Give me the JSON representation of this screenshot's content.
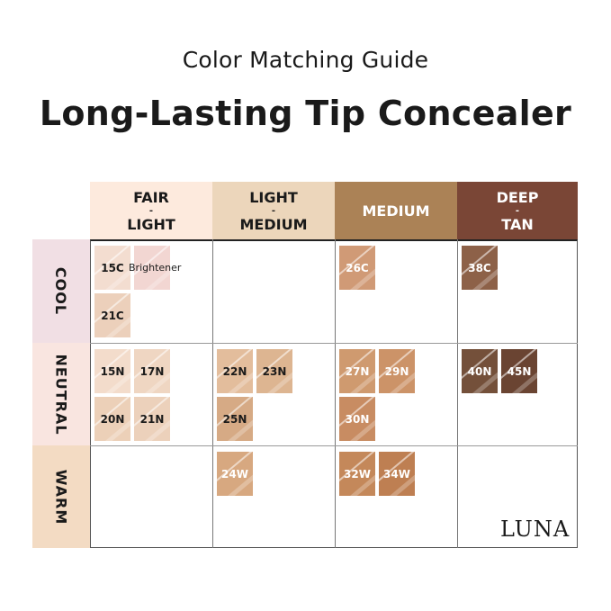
{
  "subtitle": "Color Matching Guide",
  "title": "Long-Lasting Tip Concealer",
  "columns": [
    {
      "top": "FAIR",
      "dash": "-",
      "bottom": "LIGHT",
      "color": "#fdeadd",
      "text": "#1a1a1a"
    },
    {
      "top": "LIGHT",
      "dash": "-",
      "bottom": "MEDIUM",
      "color": "#ecd6bb",
      "text": "#1a1a1a"
    },
    {
      "top": "MEDIUM",
      "dash": "",
      "bottom": "",
      "color": "#ab8256",
      "text": "#ffffff"
    },
    {
      "top": "DEEP",
      "dash": "-",
      "bottom": "TAN",
      "color": "#7a4636",
      "text": "#ffffff"
    }
  ],
  "rows": [
    {
      "label": "COOL",
      "color": "#f1dfe4"
    },
    {
      "label": "NEUTRAL",
      "color": "#f9e5e0"
    },
    {
      "label": "WARM",
      "color": "#f3dbc3"
    }
  ],
  "cells": [
    [
      [
        {
          "name": "15C",
          "color": "#f3ddd0",
          "text": "#1a1a1a"
        },
        {
          "name": "Brightener",
          "color": "#f2d6d2",
          "text": "#1a1a1a"
        },
        {
          "name": "21C",
          "color": "#ecd0bb",
          "text": "#1a1a1a"
        }
      ],
      [],
      [
        {
          "name": "26C",
          "color": "#d09a76",
          "text": "#ffffff"
        }
      ],
      [
        {
          "name": "38C",
          "color": "#8d6148",
          "text": "#ffffff"
        }
      ]
    ],
    [
      [
        {
          "name": "15N",
          "color": "#f3dccb",
          "text": "#1a1a1a"
        },
        {
          "name": "17N",
          "color": "#efd6c2",
          "text": "#1a1a1a"
        },
        {
          "name": "20N",
          "color": "#ecd0b8",
          "text": "#1a1a1a"
        },
        {
          "name": "21N",
          "color": "#ecd1bb",
          "text": "#1a1a1a"
        }
      ],
      [
        {
          "name": "22N",
          "color": "#e3bd9c",
          "text": "#1a1a1a"
        },
        {
          "name": "23N",
          "color": "#ddb591",
          "text": "#1a1a1a"
        },
        {
          "name": "25N",
          "color": "#d6aa85",
          "text": "#1a1a1a"
        }
      ],
      [
        {
          "name": "27N",
          "color": "#cf9a6f",
          "text": "#ffffff"
        },
        {
          "name": "29N",
          "color": "#cc9368",
          "text": "#ffffff"
        },
        {
          "name": "30N",
          "color": "#c88c62",
          "text": "#ffffff"
        }
      ],
      [
        {
          "name": "40N",
          "color": "#74503a",
          "text": "#ffffff"
        },
        {
          "name": "45N",
          "color": "#6a4432",
          "text": "#ffffff"
        }
      ]
    ],
    [
      [],
      [
        {
          "name": "24W",
          "color": "#d7a880",
          "text": "#ffffff"
        }
      ],
      [
        {
          "name": "32W",
          "color": "#c4885a",
          "text": "#ffffff"
        },
        {
          "name": "34W",
          "color": "#be7f52",
          "text": "#ffffff"
        }
      ],
      []
    ]
  ],
  "logo": "LUNA"
}
